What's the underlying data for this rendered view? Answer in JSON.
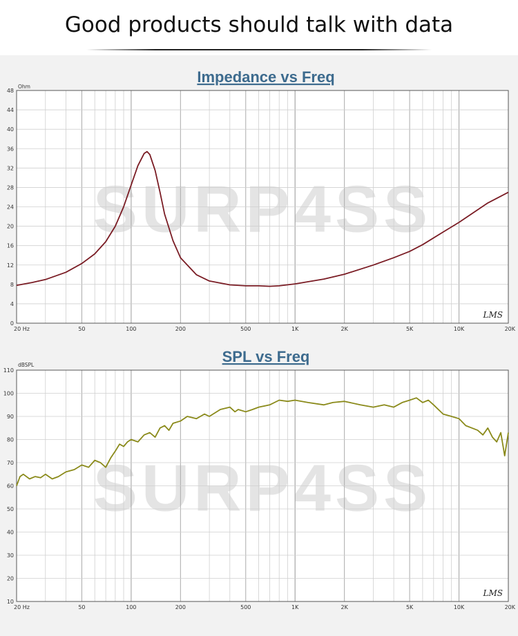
{
  "page": {
    "heading": "Good products should talk with data"
  },
  "watermark": "SURP4SS",
  "colors": {
    "impedance_line": "#7a1c24",
    "spl_line": "#8a8a1a",
    "title": "#3d6b8e",
    "grid": "#c8c8c8"
  },
  "chart_data": [
    {
      "type": "line",
      "title": "Impedance vs Freq",
      "ylabel": "Ohm",
      "xscale": "log",
      "xlim": [
        20,
        20000
      ],
      "ylim": [
        0,
        48
      ],
      "yticks": [
        0,
        4,
        8,
        12,
        16,
        20,
        24,
        28,
        32,
        36,
        40,
        44,
        48
      ],
      "xticks": [
        {
          "v": 20,
          "label": "20  Hz"
        },
        {
          "v": 50,
          "label": "50"
        },
        {
          "v": 100,
          "label": "100"
        },
        {
          "v": 200,
          "label": "200"
        },
        {
          "v": 500,
          "label": "500"
        },
        {
          "v": 1000,
          "label": "1K"
        },
        {
          "v": 2000,
          "label": "2K"
        },
        {
          "v": 5000,
          "label": "5K"
        },
        {
          "v": 10000,
          "label": "10K"
        },
        {
          "v": 20000,
          "label": "20K"
        }
      ],
      "grid": true,
      "logo": "LMS",
      "series": [
        {
          "x": [
            20,
            25,
            30,
            40,
            50,
            60,
            70,
            80,
            90,
            100,
            110,
            120,
            125,
            130,
            140,
            150,
            160,
            180,
            200,
            250,
            300,
            400,
            500,
            600,
            700,
            800,
            1000,
            1500,
            2000,
            3000,
            4000,
            5000,
            6000,
            8000,
            10000,
            15000,
            20000
          ],
          "y": [
            7.8,
            8.4,
            9.0,
            10.5,
            12.3,
            14.3,
            16.8,
            20.0,
            24.0,
            28.5,
            32.5,
            35.0,
            35.4,
            34.8,
            31.5,
            27.0,
            22.5,
            17.0,
            13.5,
            10.0,
            8.7,
            7.9,
            7.7,
            7.7,
            7.6,
            7.7,
            8.1,
            9.1,
            10.1,
            12.0,
            13.5,
            14.8,
            16.2,
            18.8,
            20.8,
            24.8,
            27.0
          ]
        }
      ]
    },
    {
      "type": "line",
      "title": "SPL vs Freq",
      "ylabel": "dBSPL",
      "xscale": "log",
      "xlim": [
        20,
        20000
      ],
      "ylim": [
        10,
        110
      ],
      "yticks": [
        10,
        20,
        30,
        40,
        50,
        60,
        70,
        80,
        90,
        100,
        110
      ],
      "xticks": [
        {
          "v": 20,
          "label": "20  Hz"
        },
        {
          "v": 50,
          "label": "50"
        },
        {
          "v": 100,
          "label": "100"
        },
        {
          "v": 200,
          "label": "200"
        },
        {
          "v": 500,
          "label": "500"
        },
        {
          "v": 1000,
          "label": "1K"
        },
        {
          "v": 2000,
          "label": "2K"
        },
        {
          "v": 5000,
          "label": "5K"
        },
        {
          "v": 10000,
          "label": "10K"
        },
        {
          "v": 20000,
          "label": "20K"
        }
      ],
      "grid": true,
      "logo": "LMS",
      "series": [
        {
          "x": [
            20,
            21,
            22,
            24,
            26,
            28,
            30,
            33,
            36,
            40,
            45,
            50,
            55,
            60,
            65,
            70,
            75,
            80,
            85,
            90,
            95,
            100,
            110,
            120,
            130,
            140,
            150,
            160,
            170,
            180,
            200,
            220,
            250,
            280,
            300,
            350,
            400,
            430,
            450,
            500,
            550,
            600,
            700,
            800,
            900,
            1000,
            1200,
            1500,
            1700,
            2000,
            2500,
            3000,
            3500,
            4000,
            4500,
            5000,
            5500,
            6000,
            6500,
            7000,
            8000,
            9000,
            10000,
            11000,
            12000,
            13000,
            14000,
            15000,
            16000,
            17000,
            18000,
            19000,
            20000
          ],
          "y": [
            60,
            64,
            65,
            63,
            64,
            63.5,
            65,
            63,
            64,
            66,
            67,
            69,
            68,
            71,
            70,
            68,
            72,
            75,
            78,
            77,
            79,
            80,
            79,
            82,
            83,
            81,
            85,
            86,
            84,
            87,
            88,
            90,
            89,
            91,
            90,
            93,
            94,
            92,
            93,
            92,
            93,
            94,
            95,
            97,
            96.5,
            97,
            96,
            95,
            96,
            96.5,
            95,
            94,
            95,
            94,
            96,
            97,
            98,
            96,
            97,
            95,
            91,
            90,
            89,
            86,
            85,
            84,
            82,
            85,
            81,
            79,
            83,
            73,
            83
          ]
        }
      ]
    }
  ]
}
